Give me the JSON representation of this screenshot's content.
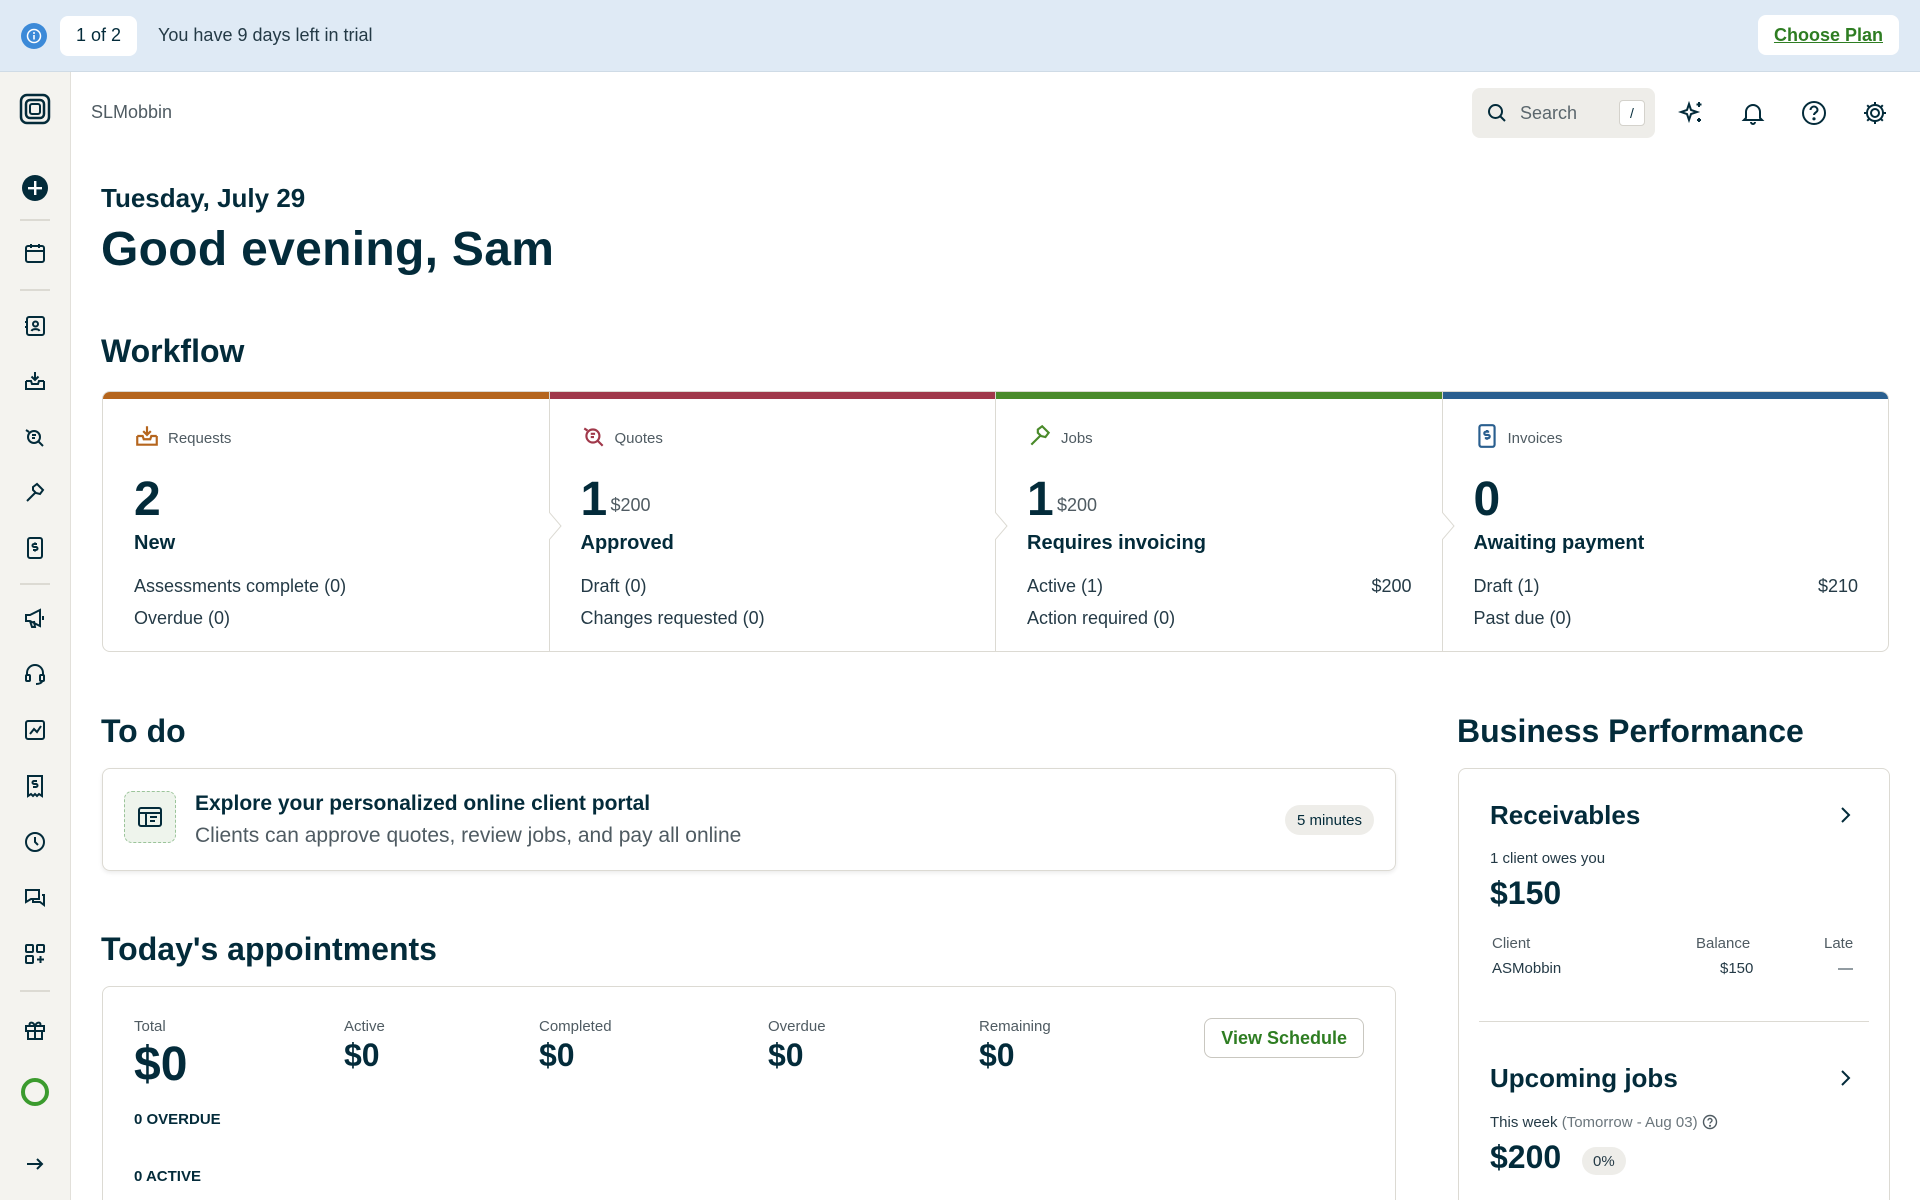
{
  "banner": {
    "pager": "1 of 2",
    "message": "You have 9 days left in trial",
    "choose_plan": "Choose Plan"
  },
  "header": {
    "account": "SLMobbin",
    "search_placeholder": "Search",
    "search_shortcut": "/"
  },
  "greeting": {
    "date": "Tuesday, July 29",
    "text": "Good evening, Sam"
  },
  "workflow": {
    "title": "Workflow",
    "columns": [
      {
        "label": "Requests",
        "count": "2",
        "amount": "",
        "status": "New",
        "color": "#b5651d",
        "rows": [
          {
            "text": "Assessments complete (0)",
            "value": ""
          },
          {
            "text": "Overdue (0)",
            "value": ""
          }
        ]
      },
      {
        "label": "Quotes",
        "count": "1",
        "amount": "$200",
        "status": "Approved",
        "color": "#a0384a",
        "rows": [
          {
            "text": "Draft (0)",
            "value": ""
          },
          {
            "text": "Changes requested (0)",
            "value": ""
          }
        ]
      },
      {
        "label": "Jobs",
        "count": "1",
        "amount": "$200",
        "status": "Requires invoicing",
        "color": "#4a8a2a",
        "rows": [
          {
            "text": "Active (1)",
            "value": "$200"
          },
          {
            "text": "Action required (0)",
            "value": ""
          }
        ]
      },
      {
        "label": "Invoices",
        "count": "0",
        "amount": "",
        "status": "Awaiting payment",
        "color": "#2a5f8f",
        "rows": [
          {
            "text": "Draft (1)",
            "value": "$210"
          },
          {
            "text": "Past due (0)",
            "value": ""
          }
        ]
      }
    ]
  },
  "todo": {
    "title": "To do",
    "item_title": "Explore your personalized online client portal",
    "item_sub": "Clients can approve quotes, review jobs, and pay all online",
    "item_time": "5 minutes"
  },
  "appointments": {
    "title": "Today's appointments",
    "stats": [
      {
        "label": "Total",
        "value": "$0"
      },
      {
        "label": "Active",
        "value": "$0"
      },
      {
        "label": "Completed",
        "value": "$0"
      },
      {
        "label": "Overdue",
        "value": "$0"
      },
      {
        "label": "Remaining",
        "value": "$0"
      }
    ],
    "view_schedule": "View Schedule",
    "overdue_caps": "0 OVERDUE",
    "active_caps": "0 ACTIVE"
  },
  "performance": {
    "title": "Business Performance",
    "receivables": {
      "title": "Receivables",
      "owes": "1 client owes you",
      "amount": "$150",
      "col_client": "Client",
      "col_balance": "Balance",
      "col_late": "Late",
      "client": "ASMobbin",
      "balance": "$150",
      "late": "—"
    },
    "upcoming": {
      "title": "Upcoming jobs",
      "range_label": "This week",
      "range": "(Tomorrow - Aug 03)",
      "amount": "$200",
      "percent": "0%"
    }
  },
  "colors": {
    "accent_green": "#2e7d22",
    "banner_bg": "#dfeaf5",
    "rail_bg": "#f4f3ef",
    "ink": "#032b3a"
  }
}
